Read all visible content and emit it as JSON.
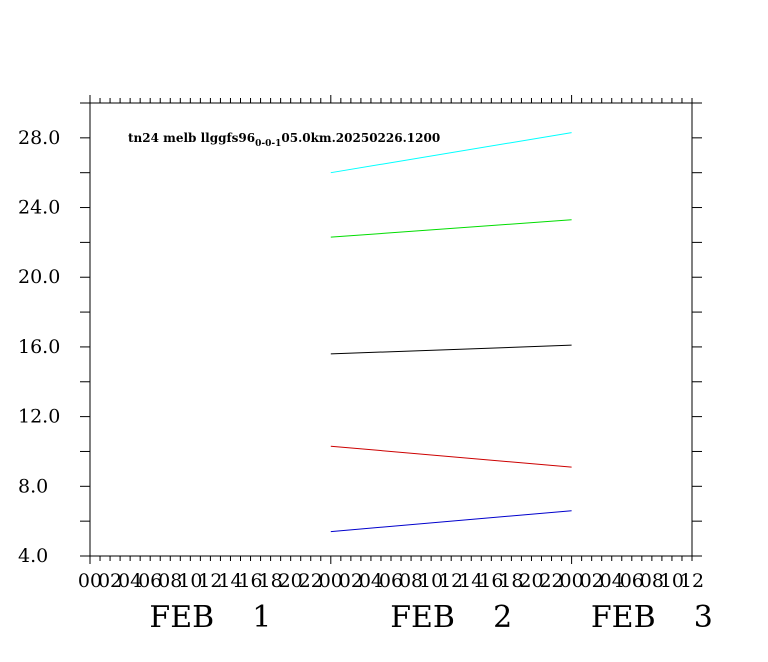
{
  "chart_data": {
    "type": "line",
    "title": {
      "prefix": "tn24  melb  llggfs96",
      "subscript": "0-0-1",
      "suffix": "05.0km.20250226.1200"
    },
    "xlabel": "",
    "ylabel": "",
    "ylim": [
      4.0,
      30.0
    ],
    "yticks": [
      4.0,
      8.0,
      12.0,
      16.0,
      20.0,
      24.0,
      28.0
    ],
    "ytick_labels": [
      "4.0",
      "8.0",
      "12.0",
      "16.0",
      "20.0",
      "24.0",
      "28.0"
    ],
    "xlim_hours": [
      0,
      60
    ],
    "x_hour_labels": [
      "00",
      "02",
      "04",
      "06",
      "08",
      "10",
      "12",
      "14",
      "16",
      "18",
      "20",
      "22",
      "00",
      "02",
      "04",
      "06",
      "08",
      "10",
      "12",
      "14",
      "16",
      "18",
      "20",
      "22",
      "00",
      "02",
      "04",
      "06",
      "08",
      "10",
      "12"
    ],
    "x_date_labels": [
      {
        "text": "FEB    1",
        "hour": 12
      },
      {
        "text": "FEB    2",
        "hour": 36
      },
      {
        "text": "FEB    3",
        "hour": 56
      }
    ],
    "grid": false,
    "x": [
      "FEB 2 00",
      "FEB 3 00"
    ],
    "series": [
      {
        "color": "#00ffff",
        "x_hours": [
          24,
          48
        ],
        "values": [
          26.0,
          28.3
        ]
      },
      {
        "color": "#00dd00",
        "x_hours": [
          24,
          48
        ],
        "values": [
          22.3,
          23.3
        ]
      },
      {
        "color": "#000000",
        "x_hours": [
          24,
          48
        ],
        "values": [
          15.6,
          16.1
        ]
      },
      {
        "color": "#cc0000",
        "x_hours": [
          24,
          48
        ],
        "values": [
          10.3,
          9.1
        ]
      },
      {
        "color": "#0000cc",
        "x_hours": [
          24,
          48
        ],
        "values": [
          5.4,
          6.6
        ]
      }
    ]
  }
}
